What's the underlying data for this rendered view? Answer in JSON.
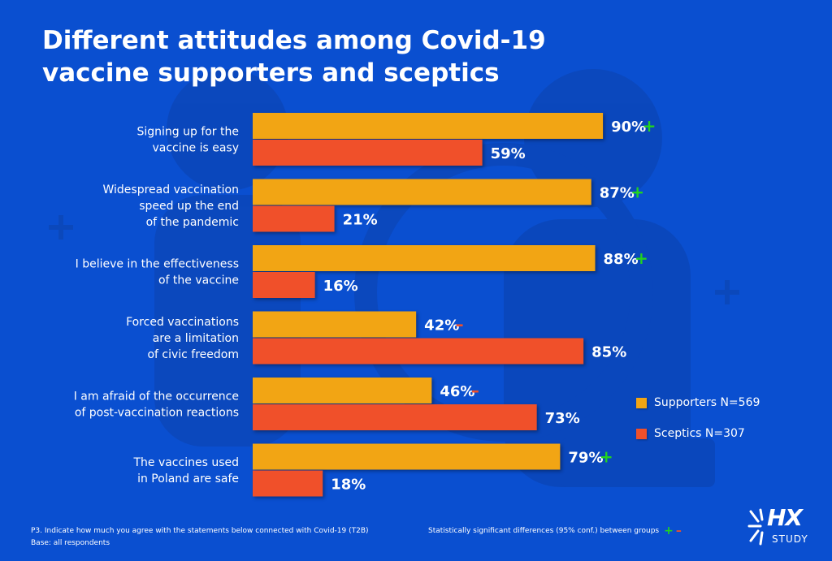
{
  "title": {
    "line1": "Different attitudes among Covid-19",
    "line2": "vaccine supporters and sceptics"
  },
  "colors": {
    "background": "#0a4fd0",
    "supporters": "#f2a514",
    "sceptics": "#f0502a",
    "sig_plus": "#22d41e",
    "sig_minus": "#f0502a"
  },
  "chart_data": {
    "type": "bar",
    "orientation": "horizontal",
    "categories": [
      [
        "Signing up for the",
        "vaccine is easy"
      ],
      [
        "Widespread vaccination",
        "speed up the end",
        "of the pandemic"
      ],
      [
        "I believe in the effectiveness",
        "of the vaccine"
      ],
      [
        "Forced vaccinations",
        "are a limitation",
        "of civic freedom"
      ],
      [
        "I am afraid of the occurrence",
        "of post-vaccination reactions"
      ],
      [
        "The vaccines used",
        "in Poland are safe"
      ]
    ],
    "series": [
      {
        "name": "Supporters N=569",
        "values": [
          90,
          87,
          88,
          42,
          46,
          79
        ],
        "significance": [
          "+",
          "+",
          "+",
          "-",
          "-",
          "+"
        ]
      },
      {
        "name": "Sceptics N=307",
        "values": [
          59,
          21,
          16,
          85,
          73,
          18
        ],
        "significance": [
          "",
          "",
          "",
          "",
          "",
          ""
        ]
      }
    ],
    "value_suffix": "%",
    "xlim": [
      0,
      100
    ],
    "grid": false,
    "legend_position": "right"
  },
  "legend": {
    "supporters": "Supporters N=569",
    "sceptics": "Sceptics N=307"
  },
  "footnote": {
    "question": "P3. Indicate how much you agree with the statements below connected with Covid-19 (T2B)",
    "base": "Base: all respondents"
  },
  "significance_note": {
    "text": "Statistically significant differences (95% conf.) between groups",
    "plus": "+",
    "minus": "–"
  },
  "logo": {
    "mark": "HX",
    "sub": "STUDY",
    "icon": "starburst-icon"
  }
}
